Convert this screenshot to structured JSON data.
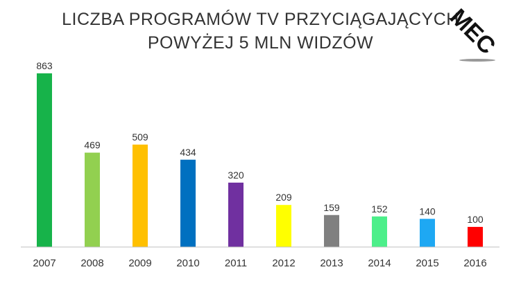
{
  "chart_data": {
    "type": "bar",
    "title": "LICZBA PROGRAMÓW TV PRZYCIĄGAJĄCYCH POWYŻEJ 5 MLN WIDZÓW",
    "title_lines": [
      "LICZBA PROGRAMÓW TV PRZYCIĄGAJĄCYCH",
      "POWYŻEJ 5 MLN WIDZÓW"
    ],
    "categories": [
      "2007",
      "2008",
      "2009",
      "2010",
      "2011",
      "2012",
      "2013",
      "2014",
      "2015",
      "2016"
    ],
    "values": [
      863,
      469,
      509,
      434,
      320,
      209,
      159,
      152,
      140,
      100
    ],
    "colors": [
      "#17b34a",
      "#92d050",
      "#ffc000",
      "#0070c0",
      "#7030a0",
      "#ffff00",
      "#808080",
      "#4cef8a",
      "#1ea8f3",
      "#ff0000"
    ],
    "xlabel": "",
    "ylabel": "",
    "ylim": [
      0,
      863
    ],
    "grid": false,
    "legend": "none"
  },
  "logo": {
    "text": "MEC"
  }
}
